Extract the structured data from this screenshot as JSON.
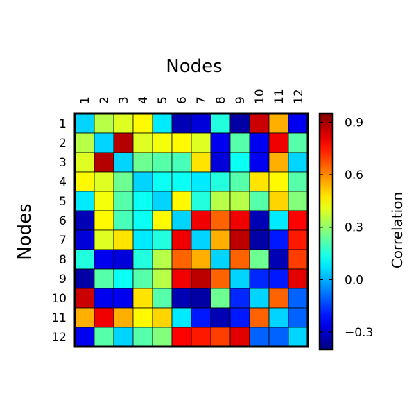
{
  "chart_data": {
    "type": "heatmap",
    "title": "",
    "xlabel": "Nodes",
    "ylabel": "Nodes",
    "x_categories": [
      "1",
      "2",
      "3",
      "4",
      "5",
      "6",
      "7",
      "8",
      "9",
      "10",
      "11",
      "12"
    ],
    "y_categories": [
      "1",
      "2",
      "3",
      "4",
      "5",
      "6",
      "7",
      "8",
      "9",
      "10",
      "11",
      "12"
    ],
    "values": [
      [
        0.05,
        0.35,
        0.4,
        0.45,
        0.08,
        -0.33,
        -0.28,
        0.15,
        -0.35,
        0.85,
        0.55,
        -0.25
      ],
      [
        0.35,
        0.05,
        0.88,
        0.4,
        0.43,
        0.45,
        0.4,
        -0.25,
        0.22,
        -0.25,
        0.8,
        0.22
      ],
      [
        0.4,
        0.88,
        0.05,
        0.25,
        0.22,
        0.2,
        0.48,
        -0.28,
        0.12,
        -0.25,
        0.55,
        0.05
      ],
      [
        0.45,
        0.4,
        0.25,
        0.05,
        0.12,
        0.12,
        0.08,
        0.15,
        0.22,
        0.48,
        0.45,
        0.22
      ],
      [
        0.08,
        0.43,
        0.22,
        0.12,
        0.05,
        0.45,
        0.15,
        0.35,
        0.35,
        0.22,
        0.5,
        0.28
      ],
      [
        -0.33,
        0.45,
        0.2,
        0.12,
        0.45,
        0.05,
        0.8,
        0.65,
        0.8,
        -0.33,
        0.08,
        0.78
      ],
      [
        -0.28,
        0.4,
        0.48,
        0.08,
        0.15,
        0.8,
        0.05,
        0.55,
        0.87,
        -0.35,
        -0.2,
        0.75
      ],
      [
        0.15,
        -0.25,
        -0.28,
        0.15,
        0.35,
        0.65,
        0.55,
        0.05,
        0.65,
        0.25,
        -0.33,
        0.7
      ],
      [
        -0.35,
        0.22,
        0.12,
        0.22,
        0.35,
        0.8,
        0.87,
        0.65,
        0.05,
        -0.18,
        -0.2,
        0.82
      ],
      [
        0.85,
        -0.25,
        -0.25,
        0.48,
        0.22,
        -0.33,
        -0.35,
        0.25,
        -0.18,
        0.05,
        0.65,
        -0.1
      ],
      [
        0.55,
        0.8,
        0.55,
        0.45,
        0.5,
        0.08,
        -0.2,
        -0.33,
        -0.2,
        0.65,
        0.05,
        -0.1
      ],
      [
        -0.25,
        0.22,
        0.05,
        0.22,
        0.28,
        0.78,
        0.75,
        0.7,
        0.82,
        -0.1,
        -0.1,
        0.05
      ]
    ],
    "vmin": -0.4,
    "vmax": 0.95,
    "colormap": "jet",
    "colorbar": {
      "label": "Correlation",
      "ticks": [
        0.9,
        0.6,
        0.3,
        0.0,
        -0.3
      ],
      "tick_labels": [
        "0.9",
        "0.6",
        "0.3",
        "0.0",
        "−0.3"
      ]
    },
    "x_tick_position": "top",
    "grid": true,
    "legend": "colorbar-right"
  }
}
